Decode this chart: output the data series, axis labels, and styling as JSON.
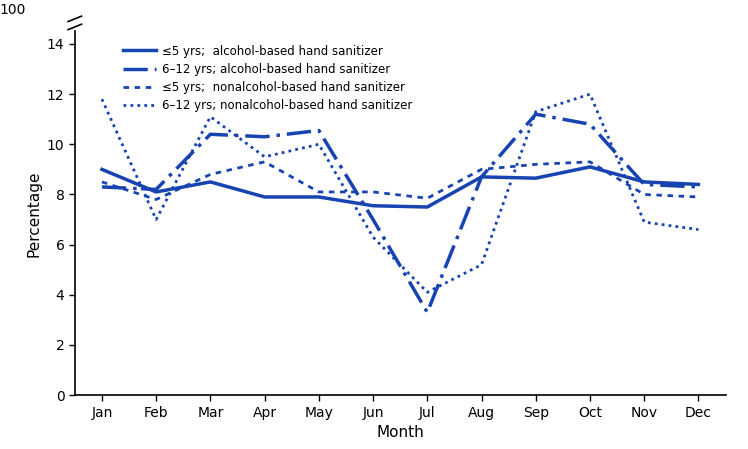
{
  "months": [
    "Jan",
    "Feb",
    "Mar",
    "Apr",
    "May",
    "Jun",
    "Jul",
    "Aug",
    "Sep",
    "Oct",
    "Nov",
    "Dec"
  ],
  "le5_alcohol": [
    9.0,
    8.1,
    8.5,
    7.9,
    7.9,
    7.55,
    7.5,
    8.7,
    8.65,
    9.1,
    8.5,
    8.4
  ],
  "age6_12_alcohol": [
    8.3,
    8.2,
    10.4,
    10.3,
    10.55,
    7.0,
    3.3,
    8.7,
    11.2,
    10.8,
    8.4,
    8.3
  ],
  "le5_nonalcohol": [
    8.5,
    7.8,
    8.8,
    9.3,
    8.1,
    8.1,
    7.85,
    9.0,
    9.2,
    9.3,
    8.0,
    7.9
  ],
  "age6_12_nonalcohol": [
    11.8,
    7.0,
    11.1,
    9.5,
    10.0,
    6.3,
    4.1,
    5.2,
    11.3,
    12.0,
    6.9,
    6.6
  ],
  "color": "#1744b0",
  "ylabel": "Percentage",
  "xlabel": "Month",
  "ylim": [
    0,
    14.5
  ],
  "yticks": [
    0,
    2,
    4,
    6,
    8,
    10,
    12,
    14
  ],
  "legend_labels": [
    "≤5 yrs;  alcohol-based hand sanitizer",
    "6–12 yrs; alcohol-based hand sanitizer",
    "≤5 yrs;  nonalcohol-based hand sanitizer",
    "6–12 yrs; nonalcohol-based hand sanitizer"
  ]
}
